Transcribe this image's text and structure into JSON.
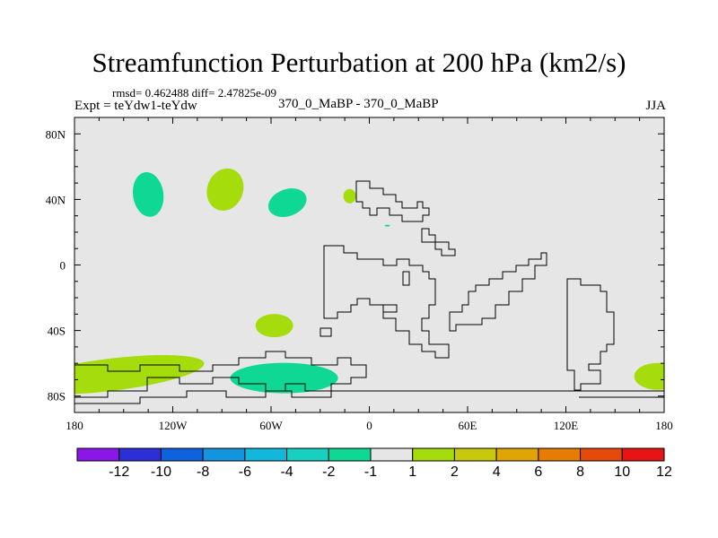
{
  "header": {
    "title": "Streamfunction Perturbation at 200 hPa (km2/s)",
    "stats": "rmsd= 0.462488 diff= 2.47825e-09",
    "expt": "Expt = teYdw1-teYdw",
    "center_label": "370_0_MaBP - 370_0_MaBP",
    "season": "JJA"
  },
  "chart_data": {
    "type": "heatmap",
    "title": "Streamfunction Perturbation at 200 hPa (km2/s)",
    "xlim": [
      -180,
      180
    ],
    "ylim": [
      -90,
      90
    ],
    "x_ticks": [
      {
        "value": -180,
        "label": "180"
      },
      {
        "value": -120,
        "label": "120W"
      },
      {
        "value": -60,
        "label": "60W"
      },
      {
        "value": 0,
        "label": "0"
      },
      {
        "value": 60,
        "label": "60E"
      },
      {
        "value": 120,
        "label": "120E"
      },
      {
        "value": 180,
        "label": "180"
      }
    ],
    "y_ticks": [
      {
        "value": 80,
        "label": "80N"
      },
      {
        "value": 40,
        "label": "40N"
      },
      {
        "value": 0,
        "label": "0"
      },
      {
        "value": -40,
        "label": "40S"
      },
      {
        "value": -80,
        "label": "80S"
      }
    ],
    "levels": [
      "-12",
      "-10",
      "-8",
      "-6",
      "-4",
      "-2",
      "-1",
      "1",
      "2",
      "4",
      "6",
      "8",
      "10",
      "12"
    ],
    "colors": [
      "#8a17e6",
      "#2d2fd6",
      "#0f62de",
      "#1394de",
      "#12b8dc",
      "#17d0c0",
      "#0fd895",
      "#e6e6e6",
      "#a5dc0c",
      "#c8c80c",
      "#e0a404",
      "#e67c04",
      "#e64a0a",
      "#e61414"
    ],
    "anomalies": [
      {
        "sign": "negative",
        "level_range": "-2 to -1",
        "lon": -135,
        "lat": 43
      },
      {
        "sign": "positive",
        "level_range": "1 to 2",
        "lon": -88,
        "lat": 46
      },
      {
        "sign": "negative",
        "level_range": "-2 to -1",
        "lon": -50,
        "lat": 38
      },
      {
        "sign": "positive",
        "level_range": "1 to 2",
        "lon": -12,
        "lat": 42
      },
      {
        "sign": "negative",
        "level_range": "-2 to -1",
        "lon": 11,
        "lat": 24
      },
      {
        "sign": "positive",
        "level_range": "1 to 2",
        "lon": -58,
        "lat": -37
      },
      {
        "sign": "positive",
        "level_range": "1 to 2",
        "lon": -158,
        "lat": -67
      },
      {
        "sign": "negative",
        "level_range": "-2 to -1",
        "lon": -52,
        "lat": -69
      },
      {
        "sign": "positive",
        "level_range": "1 to 2",
        "lon": 176,
        "lat": -68
      }
    ]
  }
}
